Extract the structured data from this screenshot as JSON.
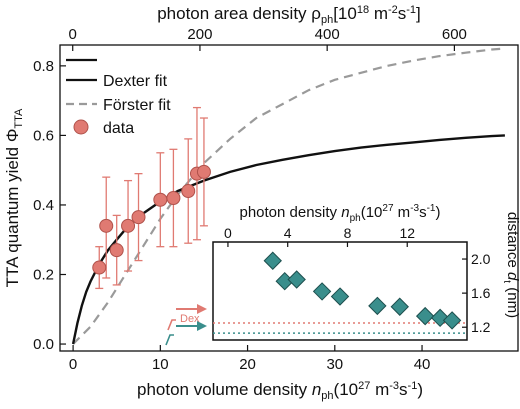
{
  "chart_data": [
    {
      "type": "line",
      "title": "",
      "xlabel": "photon volume density n_ph(10^27 m^-3s^-1)",
      "xlabel_parts": {
        "main": "photon volume density ",
        "sym": "n",
        "sub": "ph",
        "unit": "(10",
        "exp1": "27",
        "mid": " m",
        "exp2": "-3",
        "tail": "s",
        "exp3": "-1",
        "close": ")"
      },
      "ylabel": "TTA quantum yield Φ_TTA",
      "ylabel_parts": {
        "main": "TTA quantum yield Φ",
        "sub": "TTA"
      },
      "x2label": "photon area density ρ_ph[10^18 m^-2s^-1]",
      "x2label_parts": {
        "main": "photon area density ρ",
        "sub": "ph",
        "unit": "[10",
        "exp1": "18",
        "mid": " m",
        "exp2": "-2",
        "tail": "s",
        "exp3": "-1",
        "close": "]"
      },
      "xlim": [
        -1.5,
        51
      ],
      "ylim": [
        -0.02,
        0.86
      ],
      "x2lim": [
        -20,
        700
      ],
      "xticks": [
        "0",
        "10",
        "20",
        "30",
        "40"
      ],
      "xtick_values": [
        0,
        10,
        20,
        30,
        40
      ],
      "yticks": [
        "0.0",
        "0.2",
        "0.4",
        "0.6",
        "0.8"
      ],
      "ytick_values": [
        0.0,
        0.2,
        0.4,
        0.6,
        0.8
      ],
      "x2ticks": [
        "0",
        "200",
        "400",
        "600"
      ],
      "x2tick_values": [
        0,
        200,
        400,
        600
      ],
      "legend_position": "top-left",
      "series": [
        {
          "name": "Dexter fit",
          "kind": "line",
          "color": "#111111",
          "x": [
            0,
            0.5,
            1,
            1.5,
            2,
            3,
            4,
            5,
            6,
            7,
            8,
            10,
            12,
            15,
            18,
            21,
            24,
            27,
            30,
            33,
            36,
            39,
            42,
            45,
            48,
            49.5
          ],
          "y": [
            0.0,
            0.06,
            0.11,
            0.15,
            0.18,
            0.23,
            0.27,
            0.3,
            0.33,
            0.355,
            0.375,
            0.41,
            0.44,
            0.47,
            0.495,
            0.515,
            0.53,
            0.543,
            0.555,
            0.565,
            0.573,
            0.58,
            0.587,
            0.593,
            0.598,
            0.6
          ]
        },
        {
          "name": "Förster fit",
          "kind": "dashed",
          "color": "#9a9a9a",
          "x": [
            0,
            2,
            4,
            6,
            8,
            10,
            12,
            15,
            18,
            21,
            24,
            27,
            30,
            33,
            36,
            39,
            42,
            45,
            48,
            49.5
          ],
          "y": [
            0.0,
            0.05,
            0.12,
            0.2,
            0.28,
            0.36,
            0.43,
            0.52,
            0.59,
            0.65,
            0.69,
            0.73,
            0.76,
            0.78,
            0.8,
            0.815,
            0.828,
            0.838,
            0.847,
            0.85
          ]
        },
        {
          "name": "data",
          "kind": "points",
          "color": "#e07a72",
          "points": [
            {
              "x": 3.0,
              "y": 0.22,
              "lo": 0.16,
              "hi": 0.28
            },
            {
              "x": 3.8,
              "y": 0.34,
              "lo": 0.19,
              "hi": 0.48
            },
            {
              "x": 5.0,
              "y": 0.27,
              "lo": 0.17,
              "hi": 0.37
            },
            {
              "x": 6.3,
              "y": 0.34,
              "lo": 0.21,
              "hi": 0.47
            },
            {
              "x": 7.5,
              "y": 0.365,
              "lo": 0.24,
              "hi": 0.49
            },
            {
              "x": 10.0,
              "y": 0.415,
              "lo": 0.28,
              "hi": 0.55
            },
            {
              "x": 11.5,
              "y": 0.42,
              "lo": 0.28,
              "hi": 0.56
            },
            {
              "x": 13.2,
              "y": 0.44,
              "lo": 0.29,
              "hi": 0.59
            },
            {
              "x": 14.2,
              "y": 0.49,
              "lo": 0.3,
              "hi": 0.68
            },
            {
              "x": 15.0,
              "y": 0.495,
              "lo": 0.34,
              "hi": 0.65
            }
          ]
        }
      ]
    },
    {
      "type": "scatter",
      "title": "",
      "xlabel": "photon density n_ph(10^27 m^-3s^-1)",
      "xlabel_parts": {
        "main": "photon density ",
        "sym": "n",
        "sub": "ph",
        "unit": "(10",
        "exp1": "27",
        "mid": " m",
        "exp2": "-3",
        "tail": "s",
        "exp3": "-1",
        "close": ")"
      },
      "ylabel": "distance d_t (nm)",
      "ylabel_parts": {
        "main": "distance ",
        "sym": "d",
        "sub": "t",
        "unit": " (nm)"
      },
      "xlim": [
        -1,
        16
      ],
      "ylim": [
        1.05,
        2.2
      ],
      "xticks": [
        "0",
        "4",
        "8",
        "12"
      ],
      "xtick_values": [
        0,
        4,
        8,
        12
      ],
      "yticks": [
        "2.0",
        "1.6",
        "1.2"
      ],
      "ytick_values": [
        2.0,
        1.6,
        1.2
      ],
      "series": [
        {
          "name": "",
          "kind": "diamonds",
          "color": "#3a8e8c",
          "x": [
            3.0,
            3.8,
            4.6,
            6.3,
            7.5,
            10.0,
            11.5,
            13.2,
            14.2,
            15.0
          ],
          "y": [
            1.98,
            1.74,
            1.76,
            1.62,
            1.56,
            1.45,
            1.44,
            1.33,
            1.31,
            1.28
          ]
        }
      ],
      "reference_lines": [
        {
          "label": "Dex",
          "y": 1.25,
          "color": "#e07a72"
        },
        {
          "label": "",
          "y": 1.13,
          "color": "#3a8e8c"
        }
      ]
    }
  ]
}
